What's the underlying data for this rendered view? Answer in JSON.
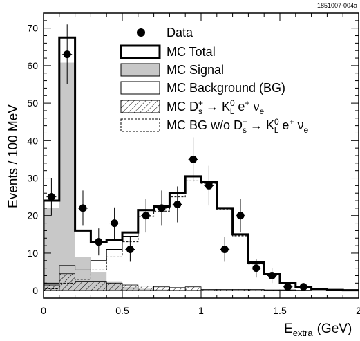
{
  "figure_id": "1851007-004a",
  "chart_data": {
    "type": "bar",
    "title": "",
    "xlabel": "E",
    "xlabel_sub": "extra",
    "xlabel_unit": "(GeV)",
    "ylabel": "Events / 100 MeV",
    "xlim": [
      0,
      2
    ],
    "ylim": [
      -2,
      74
    ],
    "x_ticks": [
      "0",
      "0.5",
      "1",
      "1.5",
      "2"
    ],
    "y_ticks": [
      "0",
      "10",
      "20",
      "30",
      "40",
      "50",
      "60",
      "70"
    ],
    "bin_edges": [
      0,
      0.1,
      0.2,
      0.3,
      0.4,
      0.5,
      0.6,
      0.7,
      0.8,
      0.9,
      1.0,
      1.1,
      1.2,
      1.3,
      1.4,
      1.5,
      1.6,
      1.7,
      1.8,
      1.9,
      2.0
    ],
    "legend_position": "top-right",
    "legend": [
      {
        "key": "data",
        "label": "Data"
      },
      {
        "key": "total",
        "label": "MC Total"
      },
      {
        "key": "signal",
        "label": "MC Signal"
      },
      {
        "key": "background",
        "label": "MC Background (BG)"
      },
      {
        "key": "kl",
        "label": "MC D",
        "sup1": "+",
        "sub1": "s",
        "arrow": " → K",
        "sup2": "0",
        "sub2": "L",
        "tail": " e",
        "sup3": "+",
        "tail2": " ν",
        "sub3": "e"
      },
      {
        "key": "bgwo",
        "label": "MC BG w/o D",
        "sup1": "+",
        "sub1": "s",
        "arrow": " → K",
        "sup2": "0",
        "sub2": "L",
        "tail": " e",
        "sup3": "+",
        "tail2": " ν",
        "sub3": "e"
      }
    ],
    "series": [
      {
        "name": "MC Total",
        "style": "thick-step",
        "values": [
          24,
          67.5,
          16,
          13,
          13.5,
          15.5,
          21.5,
          22.5,
          26,
          30.5,
          29,
          22,
          15,
          7.5,
          4.5,
          2,
          1,
          0.5,
          0.2,
          0.1
        ]
      },
      {
        "name": "MC Signal",
        "style": "filled-grey",
        "values": [
          22,
          60.8,
          9,
          5,
          2.5,
          1,
          0.5,
          0.3,
          0.2,
          0.2,
          0.1,
          0.1,
          0.1,
          0.1,
          0,
          0,
          0,
          0,
          0,
          0
        ]
      },
      {
        "name": "MC Background (BG)",
        "style": "thin-step",
        "values": [
          2,
          6.7,
          5.5,
          8,
          11,
          14.5,
          21,
          22.2,
          25.8,
          30.3,
          28.9,
          21.9,
          14.9,
          7.4,
          4.5,
          2,
          1,
          0.5,
          0.2,
          0.1
        ]
      },
      {
        "name": "MC D_s+ → K_L0 e+ ν_e",
        "style": "hatched",
        "values": [
          1.5,
          4.5,
          2.5,
          2.5,
          2,
          1.5,
          1.2,
          1,
          0.8,
          1,
          0.3,
          0.3,
          0.3,
          0.3,
          0.2,
          0.2,
          0.1,
          0,
          0,
          0
        ]
      },
      {
        "name": "MC BG w/o D_s+ → K_L0 e+ ν_e",
        "style": "dashed-step",
        "values": [
          0.5,
          2,
          3,
          5.5,
          9,
          13,
          19.8,
          21.2,
          25,
          29.3,
          28.6,
          21.6,
          14.6,
          7.1,
          4.3,
          1.8,
          0.9,
          0.5,
          0.2,
          0.1
        ]
      }
    ],
    "data_points": {
      "name": "Data",
      "x": [
        0.05,
        0.15,
        0.25,
        0.35,
        0.45,
        0.55,
        0.65,
        0.75,
        0.85,
        0.95,
        1.05,
        1.15,
        1.25,
        1.35,
        1.45,
        1.55,
        1.65
      ],
      "y": [
        25,
        63,
        22,
        13,
        18,
        11,
        20,
        22,
        23,
        35,
        28,
        11,
        20,
        6,
        4,
        1,
        1
      ],
      "yerr": [
        5,
        8,
        4.7,
        3.6,
        4.2,
        3.3,
        4.5,
        4.7,
        4.8,
        5.9,
        5.3,
        3.3,
        4.5,
        2.5,
        2,
        1,
        1
      ]
    }
  }
}
